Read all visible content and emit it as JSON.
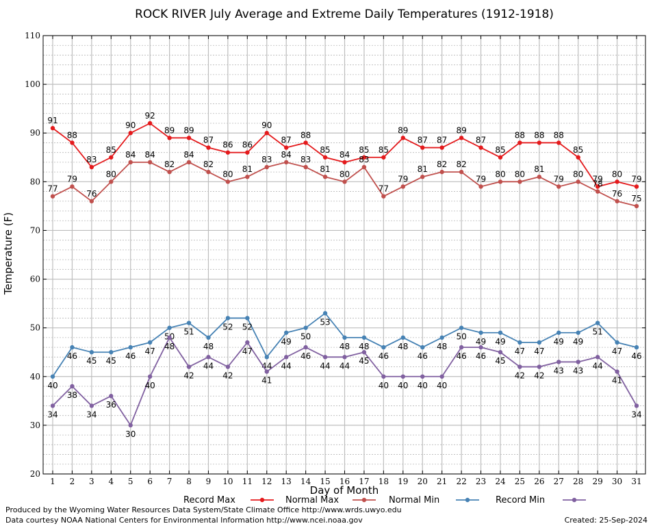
{
  "chart_data": {
    "type": "line",
    "title": "ROCK RIVER July Average and Extreme Daily Temperatures (1912-1918)",
    "xlabel": "Day of Month",
    "ylabel": "Temperature (F)",
    "ylim": [
      20,
      110
    ],
    "yticks": [
      20,
      30,
      40,
      50,
      60,
      70,
      80,
      90,
      100,
      110
    ],
    "x": [
      1,
      2,
      3,
      4,
      5,
      6,
      7,
      8,
      9,
      10,
      11,
      12,
      13,
      14,
      15,
      16,
      17,
      18,
      19,
      20,
      21,
      22,
      23,
      24,
      25,
      26,
      27,
      28,
      29,
      30,
      31
    ],
    "grid": true,
    "legend_position": "bottom",
    "series": [
      {
        "name": "Record Max",
        "color": "#e41a1c",
        "values": [
          91,
          88,
          83,
          85,
          90,
          92,
          89,
          89,
          87,
          86,
          86,
          90,
          87,
          88,
          85,
          84,
          85,
          85,
          89,
          87,
          87,
          89,
          87,
          85,
          88,
          88,
          88,
          85,
          79,
          80,
          79
        ]
      },
      {
        "name": "Normal Max",
        "color": "#c0504d",
        "values": [
          77,
          79,
          76,
          80,
          84,
          84,
          82,
          84,
          82,
          80,
          81,
          83,
          84,
          83,
          81,
          80,
          83,
          77,
          79,
          81,
          82,
          82,
          79,
          80,
          80,
          81,
          79,
          80,
          78,
          76,
          75
        ]
      },
      {
        "name": "Normal Min",
        "color": "#4682b4",
        "values": [
          40,
          46,
          45,
          45,
          46,
          47,
          50,
          51,
          48,
          52,
          52,
          44,
          49,
          50,
          53,
          48,
          48,
          46,
          48,
          46,
          48,
          50,
          49,
          49,
          47,
          47,
          49,
          49,
          51,
          47,
          46
        ]
      },
      {
        "name": "Record Min",
        "color": "#8060a0",
        "values": [
          34,
          38,
          34,
          36,
          30,
          40,
          48,
          42,
          44,
          42,
          47,
          41,
          44,
          46,
          44,
          44,
          45,
          40,
          40,
          40,
          40,
          46,
          46,
          45,
          42,
          42,
          43,
          43,
          44,
          41,
          34
        ]
      }
    ]
  },
  "footer": {
    "produced_by": "Produced by the Wyoming Water Resources Data System/State Climate Office http://www.wrds.uwyo.edu",
    "courtesy": "Data courtesy NOAA National Centers for Environmental Information http://www.ncei.noaa.gov",
    "created": "Created:  25-Sep-2024"
  }
}
